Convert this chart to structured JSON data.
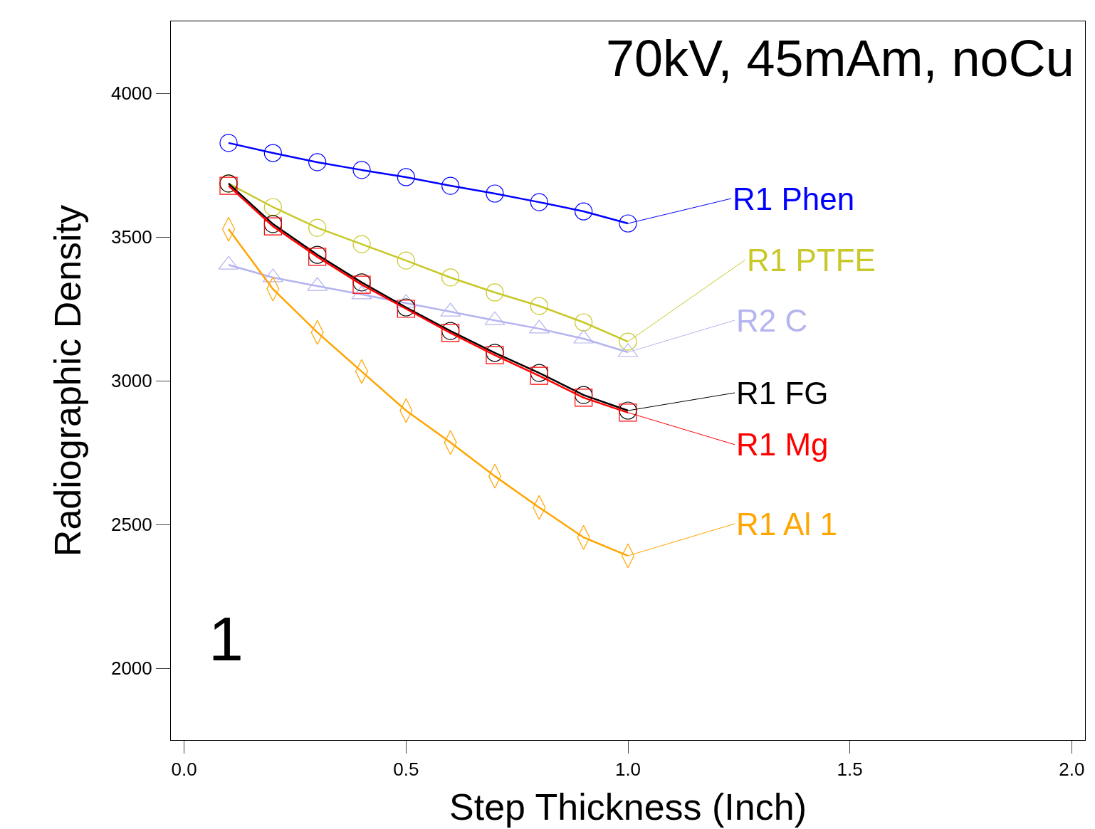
{
  "chart_data": {
    "type": "line",
    "xlabel": "Step Thickness (Inch)",
    "ylabel": "Radiographic Density",
    "x": [
      0.1,
      0.2,
      0.3,
      0.4,
      0.5,
      0.6,
      0.7,
      0.8,
      0.9,
      1.0
    ],
    "series": [
      {
        "name": "R1 Phen",
        "color": "#0000ff",
        "marker": "circle",
        "values": [
          3827,
          3792,
          3760,
          3733,
          3708,
          3678,
          3651,
          3621,
          3589,
          3547
        ]
      },
      {
        "name": "R1 PTFE",
        "color": "#c8c828",
        "marker": "circle",
        "values": [
          3686,
          3604,
          3532,
          3475,
          3418,
          3359,
          3307,
          3260,
          3203,
          3136
        ]
      },
      {
        "name": "R2 C",
        "color": "#b4b4f0",
        "marker": "triangle",
        "values": [
          3403,
          3359,
          3329,
          3300,
          3270,
          3240,
          3210,
          3181,
          3146,
          3099
        ]
      },
      {
        "name": "R1 FG",
        "color": "#000000",
        "marker": "circle",
        "values": [
          3686,
          3545,
          3438,
          3342,
          3255,
          3173,
          3097,
          3027,
          2950,
          2896
        ]
      },
      {
        "name": "R1 Mg",
        "color": "#ff0000",
        "marker": "square",
        "values": [
          3678,
          3537,
          3431,
          3334,
          3250,
          3166,
          3089,
          3017,
          2941,
          2889
        ]
      },
      {
        "name": "R1 Al 1",
        "color": "#ffa500",
        "marker": "diamond",
        "values": [
          3527,
          3319,
          3168,
          3032,
          2896,
          2785,
          2668,
          2559,
          2455,
          2391
        ]
      }
    ],
    "annotations": [
      "70kV, 45mAm, noCu",
      "1"
    ],
    "xlim": [
      -0.03,
      2.03
    ],
    "xticks": [
      {
        "value": 0,
        "label": "0.0"
      },
      {
        "value": 0.5,
        "label": "0.5"
      },
      {
        "value": 1,
        "label": "1.0"
      },
      {
        "value": 1.5,
        "label": "1.5"
      },
      {
        "value": 2,
        "label": "2.0"
      }
    ],
    "ylim": [
      1750,
      4250
    ],
    "yticks": [
      2000,
      2500,
      3000,
      3500,
      4000
    ],
    "legend": "right",
    "line_style": "solid"
  }
}
